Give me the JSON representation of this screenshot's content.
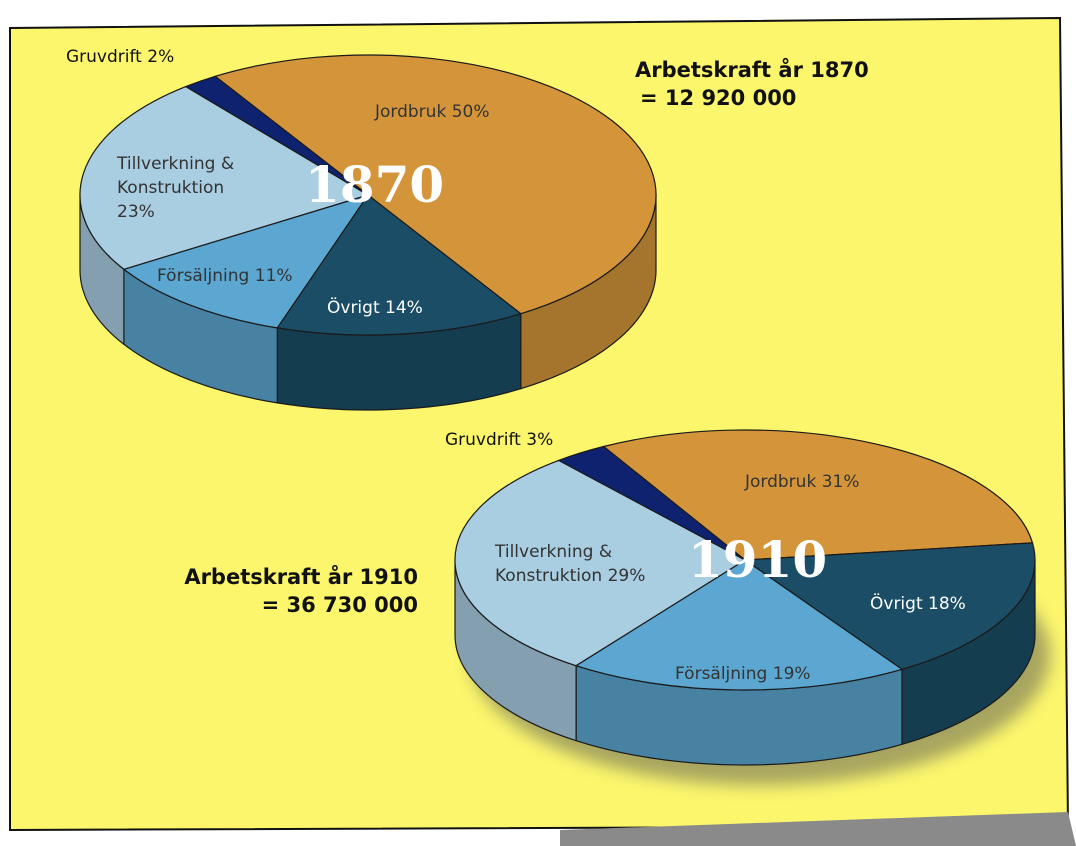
{
  "chart_data": [
    {
      "type": "pie",
      "center_label": "1870",
      "annotation": [
        "Arbetskraft år 1870",
        "= 12 920 000"
      ],
      "values": [
        50,
        14,
        11,
        23,
        2
      ],
      "value_labels": [
        "Jordbruk 50%",
        "Övrigt 14%",
        "Försäljning 11%",
        "Tillverkning & Konstruktion 23%",
        "Gruvdrift 2%"
      ],
      "colors": [
        "#d4953a",
        "#1b4e66",
        "#5ba7d1",
        "#a9cde1",
        "#0f2270"
      ]
    },
    {
      "type": "pie",
      "center_label": "1910",
      "annotation": [
        "Arbetskraft år 1910",
        "= 36 730 000"
      ],
      "values": [
        31,
        18,
        19,
        29,
        3
      ],
      "value_labels": [
        "Jordbruk 31%",
        "Övrigt 18%",
        "Försäljning 19%",
        "Tillverkning & Konstruktion 29%",
        "Gruvdrift 3%"
      ],
      "colors": [
        "#d4953a",
        "#1b4e66",
        "#5ba7d1",
        "#a9cde1",
        "#0f2270"
      ]
    }
  ]
}
